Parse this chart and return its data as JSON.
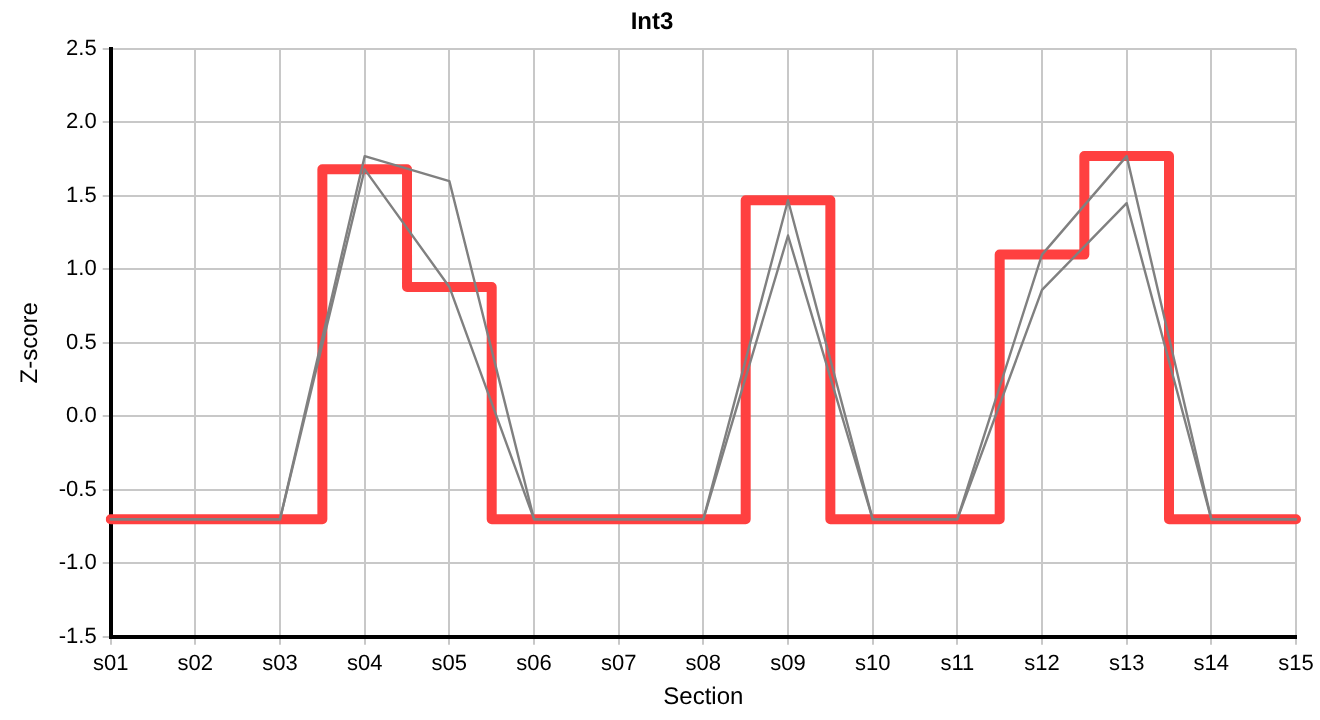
{
  "chart_data": {
    "type": "line",
    "title": "Int3",
    "xlabel": "Section",
    "ylabel": "Z-score",
    "categories": [
      "s01",
      "s02",
      "s03",
      "s04",
      "s05",
      "s06",
      "s07",
      "s08",
      "s09",
      "s10",
      "s11",
      "s12",
      "s13",
      "s14",
      "s15"
    ],
    "series": [
      {
        "type": "line",
        "color": "#808080",
        "values": [
          -0.7,
          -0.7,
          -0.7,
          1.77,
          1.6,
          -0.7,
          -0.7,
          -0.7,
          1.47,
          -0.7,
          -0.7,
          1.1,
          1.77,
          -0.7,
          -0.7
        ]
      },
      {
        "type": "line",
        "color": "#808080",
        "values": [
          -0.7,
          -0.7,
          -0.7,
          1.68,
          0.88,
          -0.7,
          -0.7,
          -0.7,
          1.23,
          -0.7,
          -0.7,
          0.86,
          1.45,
          -0.7,
          -0.7
        ]
      },
      {
        "type": "step",
        "color": "#ff4040",
        "values": [
          -0.7,
          -0.7,
          -0.7,
          1.68,
          0.88,
          -0.7,
          -0.7,
          -0.7,
          1.47,
          -0.7,
          -0.7,
          1.1,
          1.77,
          -0.7,
          -0.7
        ]
      }
    ],
    "ylim": [
      -1.5,
      2.5
    ],
    "yticks": [
      -1.5,
      {
        "value": -1,
        "label": "-1.0"
      },
      -0.5,
      {
        "value": 0,
        "label": "0.0"
      },
      0.5,
      {
        "value": 1,
        "label": "1.0"
      },
      1.5,
      {
        "value": 2,
        "label": "2.0"
      },
      2.5
    ],
    "grid": true,
    "legend": false,
    "marker": "none",
    "line_style": "solid"
  }
}
